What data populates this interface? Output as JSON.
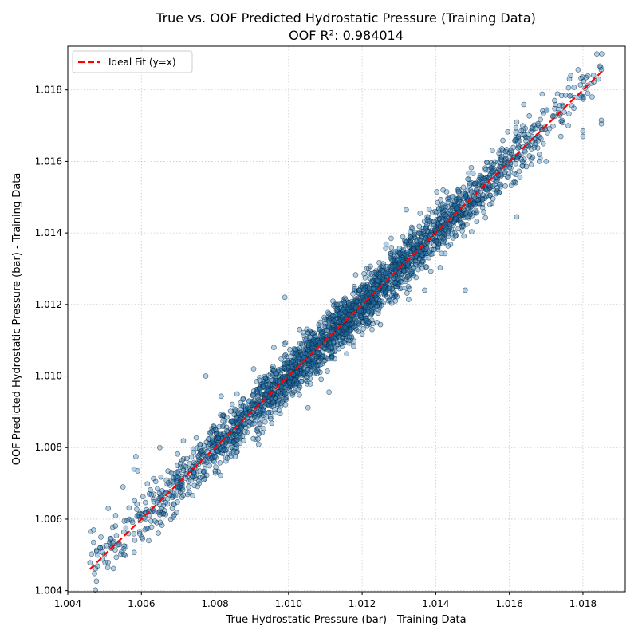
{
  "chart_data": {
    "type": "scatter",
    "title": "True vs. OOF Predicted Hydrostatic Pressure (Training Data)",
    "subtitle": "OOF R²: 0.984014",
    "xlabel": "True Hydrostatic Pressure (bar) - Training Data",
    "ylabel": "OOF Predicted Hydrostatic Pressure (bar) - Training Data",
    "xlim": [
      1.004,
      1.01915
    ],
    "ylim": [
      1.00397,
      1.01922
    ],
    "x_ticks": [
      "1.004",
      "1.006",
      "1.008",
      "1.010",
      "1.012",
      "1.014",
      "1.016",
      "1.018"
    ],
    "y_ticks": [
      "1.004",
      "1.006",
      "1.008",
      "1.010",
      "1.012",
      "1.014",
      "1.016",
      "1.018"
    ],
    "grid": true,
    "legend": {
      "position": "top-left",
      "entries": [
        "Ideal Fit (y=x)"
      ]
    },
    "series": [
      {
        "name": "Ideal Fit (y=x)",
        "kind": "line",
        "style": "dashed",
        "color": "#ff0000",
        "x": [
          1.0046,
          1.01852
        ],
        "y": [
          1.0046,
          1.01852
        ]
      },
      {
        "kind": "scatter",
        "color": "#1f77b4",
        "count": 3000,
        "x_range": [
          1.0046,
          1.01852
        ],
        "residual_sd": 0.00035,
        "approx_outliers": [
          [
            1.00462,
            1.00565
          ],
          [
            1.0047,
            1.0057
          ],
          [
            1.0047,
            1.00535
          ],
          [
            1.00488,
            1.0052
          ],
          [
            1.0049,
            1.0055
          ],
          [
            1.0051,
            1.0063
          ],
          [
            1.00515,
            1.00545
          ],
          [
            1.0053,
            1.0061
          ],
          [
            1.0055,
            1.0069
          ],
          [
            1.0058,
            1.0074
          ],
          [
            1.00585,
            1.00775
          ],
          [
            1.0059,
            1.00735
          ],
          [
            1.0062,
            1.0054
          ],
          [
            1.0065,
            1.008
          ],
          [
            1.0068,
            1.006
          ],
          [
            1.00775,
            1.01
          ],
          [
            1.0086,
            1.0095
          ],
          [
            1.00905,
            1.0102
          ],
          [
            1.0096,
            1.0108
          ],
          [
            1.0099,
            1.0122
          ],
          [
            1.0103,
            1.0113
          ],
          [
            1.0111,
            1.00955
          ],
          [
            1.0124,
            1.0115
          ],
          [
            1.0132,
            1.01465
          ],
          [
            1.0137,
            1.0124
          ],
          [
            1.0142,
            1.0137
          ],
          [
            1.0142,
            1.0152
          ],
          [
            1.0148,
            1.0124
          ],
          [
            1.0149,
            1.0155
          ],
          [
            1.0162,
            1.0171
          ],
          [
            1.0162,
            1.01445
          ],
          [
            1.0169,
            1.0169
          ],
          [
            1.017,
            1.016
          ],
          [
            1.0174,
            1.0167
          ],
          [
            1.0176,
            1.017
          ],
          [
            1.018,
            1.01685
          ],
          [
            1.018,
            1.0167
          ],
          [
            1.0185,
            1.01705
          ],
          [
            1.0185,
            1.01715
          ]
        ]
      }
    ]
  }
}
